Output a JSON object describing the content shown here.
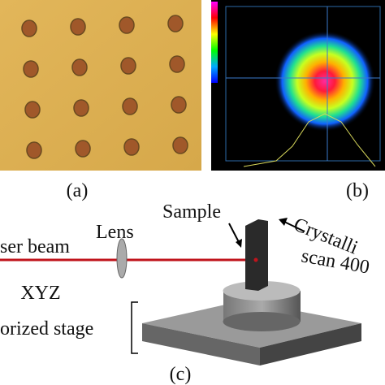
{
  "panels": {
    "a": {
      "label": "(a)"
    },
    "b": {
      "label": "(b)"
    },
    "c": {
      "label": "(c)",
      "beam": "ser beam",
      "lens": "Lens",
      "sample": "Sample",
      "scan": [
        "Crystalli",
        "scan 400"
      ],
      "stage": [
        "XYZ",
        "orized stage"
      ]
    }
  }
}
